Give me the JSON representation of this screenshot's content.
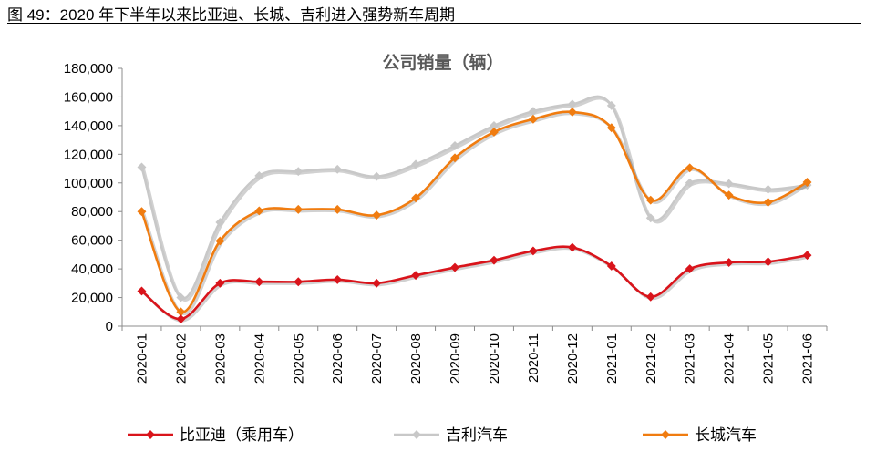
{
  "figure_caption": "图 49：2020 年下半年以来比亚迪、长城、吉利进入强势新车周期",
  "chart_data": {
    "type": "line",
    "title": "公司销量（辆）",
    "xlabel": "",
    "ylabel": "",
    "ylim": [
      0,
      180000
    ],
    "yticks": [
      "0",
      "20,000",
      "40,000",
      "60,000",
      "80,000",
      "100,000",
      "120,000",
      "140,000",
      "160,000",
      "180,000"
    ],
    "categories": [
      "2020-01",
      "2020-02",
      "2020-03",
      "2020-04",
      "2020-05",
      "2020-06",
      "2020-07",
      "2020-08",
      "2020-09",
      "2020-10",
      "2020-11",
      "2020-12",
      "2021-01",
      "2021-02",
      "2021-03",
      "2021-04",
      "2021-05",
      "2021-06"
    ],
    "grid": false,
    "legend_position": "bottom",
    "series": [
      {
        "name": "比亚迪（乘用车）",
        "color": "#d9141b",
        "values": [
          24500,
          5000,
          30000,
          31000,
          31000,
          32500,
          30000,
          35500,
          41000,
          46000,
          52500,
          55000,
          42000,
          20500,
          40000,
          44500,
          45000,
          49500
        ]
      },
      {
        "name": "吉利汽车",
        "color": "#c8c8c8",
        "values": [
          111000,
          20000,
          72500,
          105000,
          108000,
          109500,
          104500,
          113000,
          126000,
          140000,
          150000,
          155000,
          154000,
          75500,
          100000,
          99500,
          95500,
          98500
        ]
      },
      {
        "name": "长城汽车",
        "color": "#f07c10",
        "values": [
          80000,
          10000,
          59500,
          80500,
          81500,
          81500,
          77500,
          89500,
          117500,
          135500,
          144500,
          149500,
          138500,
          88000,
          110500,
          91500,
          86500,
          100500
        ]
      }
    ]
  }
}
